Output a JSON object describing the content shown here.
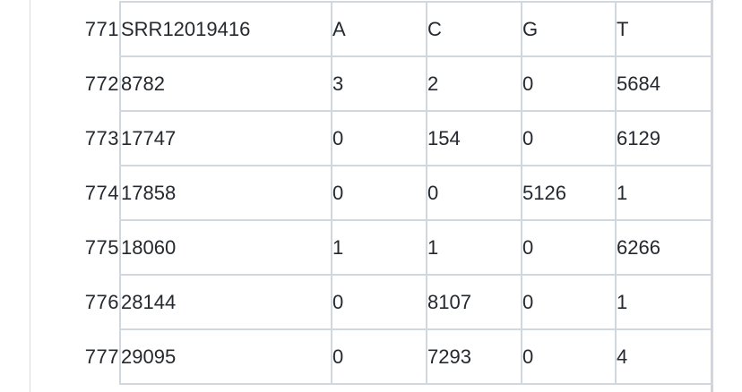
{
  "colors": {
    "grid_border": "#d0d7de",
    "row_number_text": "#6e7781",
    "cell_text": "#24292f",
    "background": "#ffffff"
  },
  "table": {
    "rows": [
      {
        "num": "771",
        "cells": [
          "SRR12019416",
          "A",
          "C",
          "G",
          "T"
        ]
      },
      {
        "num": "772",
        "cells": [
          "8782",
          "3",
          "2",
          "0",
          "5684"
        ]
      },
      {
        "num": "773",
        "cells": [
          "17747",
          "0",
          "154",
          "0",
          "6129"
        ]
      },
      {
        "num": "774",
        "cells": [
          "17858",
          "0",
          "0",
          "5126",
          "1"
        ]
      },
      {
        "num": "775",
        "cells": [
          "18060",
          "1",
          "1",
          "0",
          "6266"
        ]
      },
      {
        "num": "776",
        "cells": [
          "28144",
          "0",
          "8107",
          "0",
          "1"
        ]
      },
      {
        "num": "777",
        "cells": [
          "29095",
          "0",
          "7293",
          "0",
          "4"
        ]
      }
    ]
  }
}
